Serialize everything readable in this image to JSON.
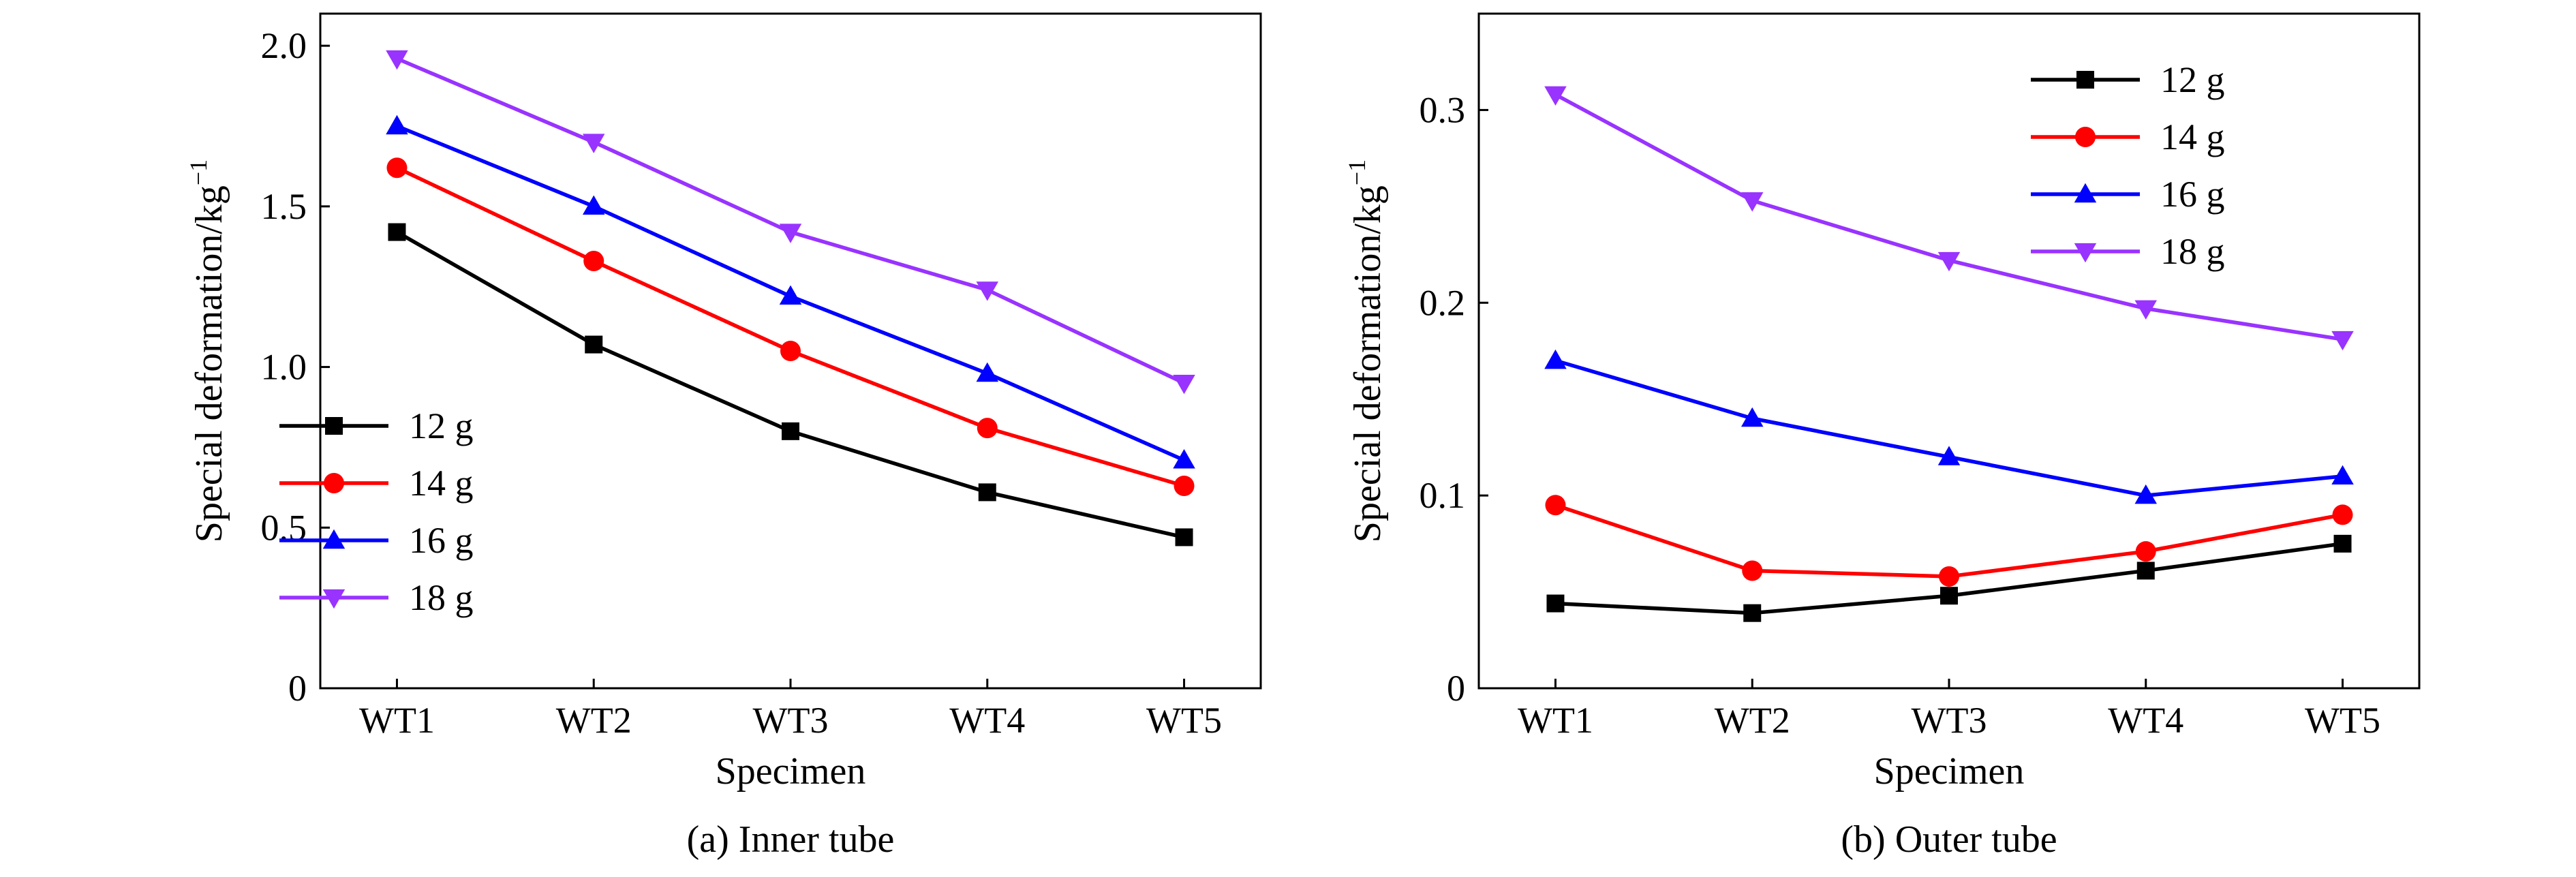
{
  "chart_data": [
    {
      "type": "line",
      "caption": "(a) Inner tube",
      "xlabel": "Specimen",
      "ylabel": "Special deformation/kg",
      "ylabel_sup": "−1",
      "categories": [
        "WT1",
        "WT2",
        "WT3",
        "WT4",
        "WT5"
      ],
      "ylim": [
        0,
        2.1
      ],
      "yticks": [
        0,
        0.5,
        1.0,
        1.5,
        2.0
      ],
      "ytick_labels": [
        "0",
        "0.5",
        "1.0",
        "1.5",
        "2.0"
      ],
      "legend_position": "lower-left",
      "series": [
        {
          "name": "12 g",
          "color": "#000000",
          "marker": "square",
          "values": [
            1.42,
            1.07,
            0.8,
            0.61,
            0.47
          ]
        },
        {
          "name": "14 g",
          "color": "#ff0000",
          "marker": "circle",
          "values": [
            1.62,
            1.33,
            1.05,
            0.81,
            0.63
          ]
        },
        {
          "name": "16 g",
          "color": "#0000ff",
          "marker": "triangle-up",
          "values": [
            1.75,
            1.5,
            1.22,
            0.98,
            0.71
          ]
        },
        {
          "name": "18 g",
          "color": "#9933ff",
          "marker": "triangle-down",
          "values": [
            1.96,
            1.7,
            1.42,
            1.24,
            0.95
          ]
        }
      ]
    },
    {
      "type": "line",
      "caption": "(b) Outer tube",
      "xlabel": "Specimen",
      "ylabel": "Special deformation/kg",
      "ylabel_sup": "−1",
      "categories": [
        "WT1",
        "WT2",
        "WT3",
        "WT4",
        "WT5"
      ],
      "ylim": [
        0,
        0.35
      ],
      "yticks": [
        0,
        0.1,
        0.2,
        0.3
      ],
      "ytick_labels": [
        "0",
        "0.1",
        "0.2",
        "0.3"
      ],
      "legend_position": "top-right",
      "series": [
        {
          "name": "12 g",
          "color": "#000000",
          "marker": "square",
          "values": [
            0.044,
            0.039,
            0.048,
            0.061,
            0.075
          ]
        },
        {
          "name": "14 g",
          "color": "#ff0000",
          "marker": "circle",
          "values": [
            0.095,
            0.061,
            0.058,
            0.071,
            0.09
          ]
        },
        {
          "name": "16 g",
          "color": "#0000ff",
          "marker": "triangle-up",
          "values": [
            0.17,
            0.14,
            0.12,
            0.1,
            0.11
          ]
        },
        {
          "name": "18 g",
          "color": "#9933ff",
          "marker": "triangle-down",
          "values": [
            0.308,
            0.253,
            0.222,
            0.197,
            0.181
          ]
        }
      ]
    }
  ]
}
